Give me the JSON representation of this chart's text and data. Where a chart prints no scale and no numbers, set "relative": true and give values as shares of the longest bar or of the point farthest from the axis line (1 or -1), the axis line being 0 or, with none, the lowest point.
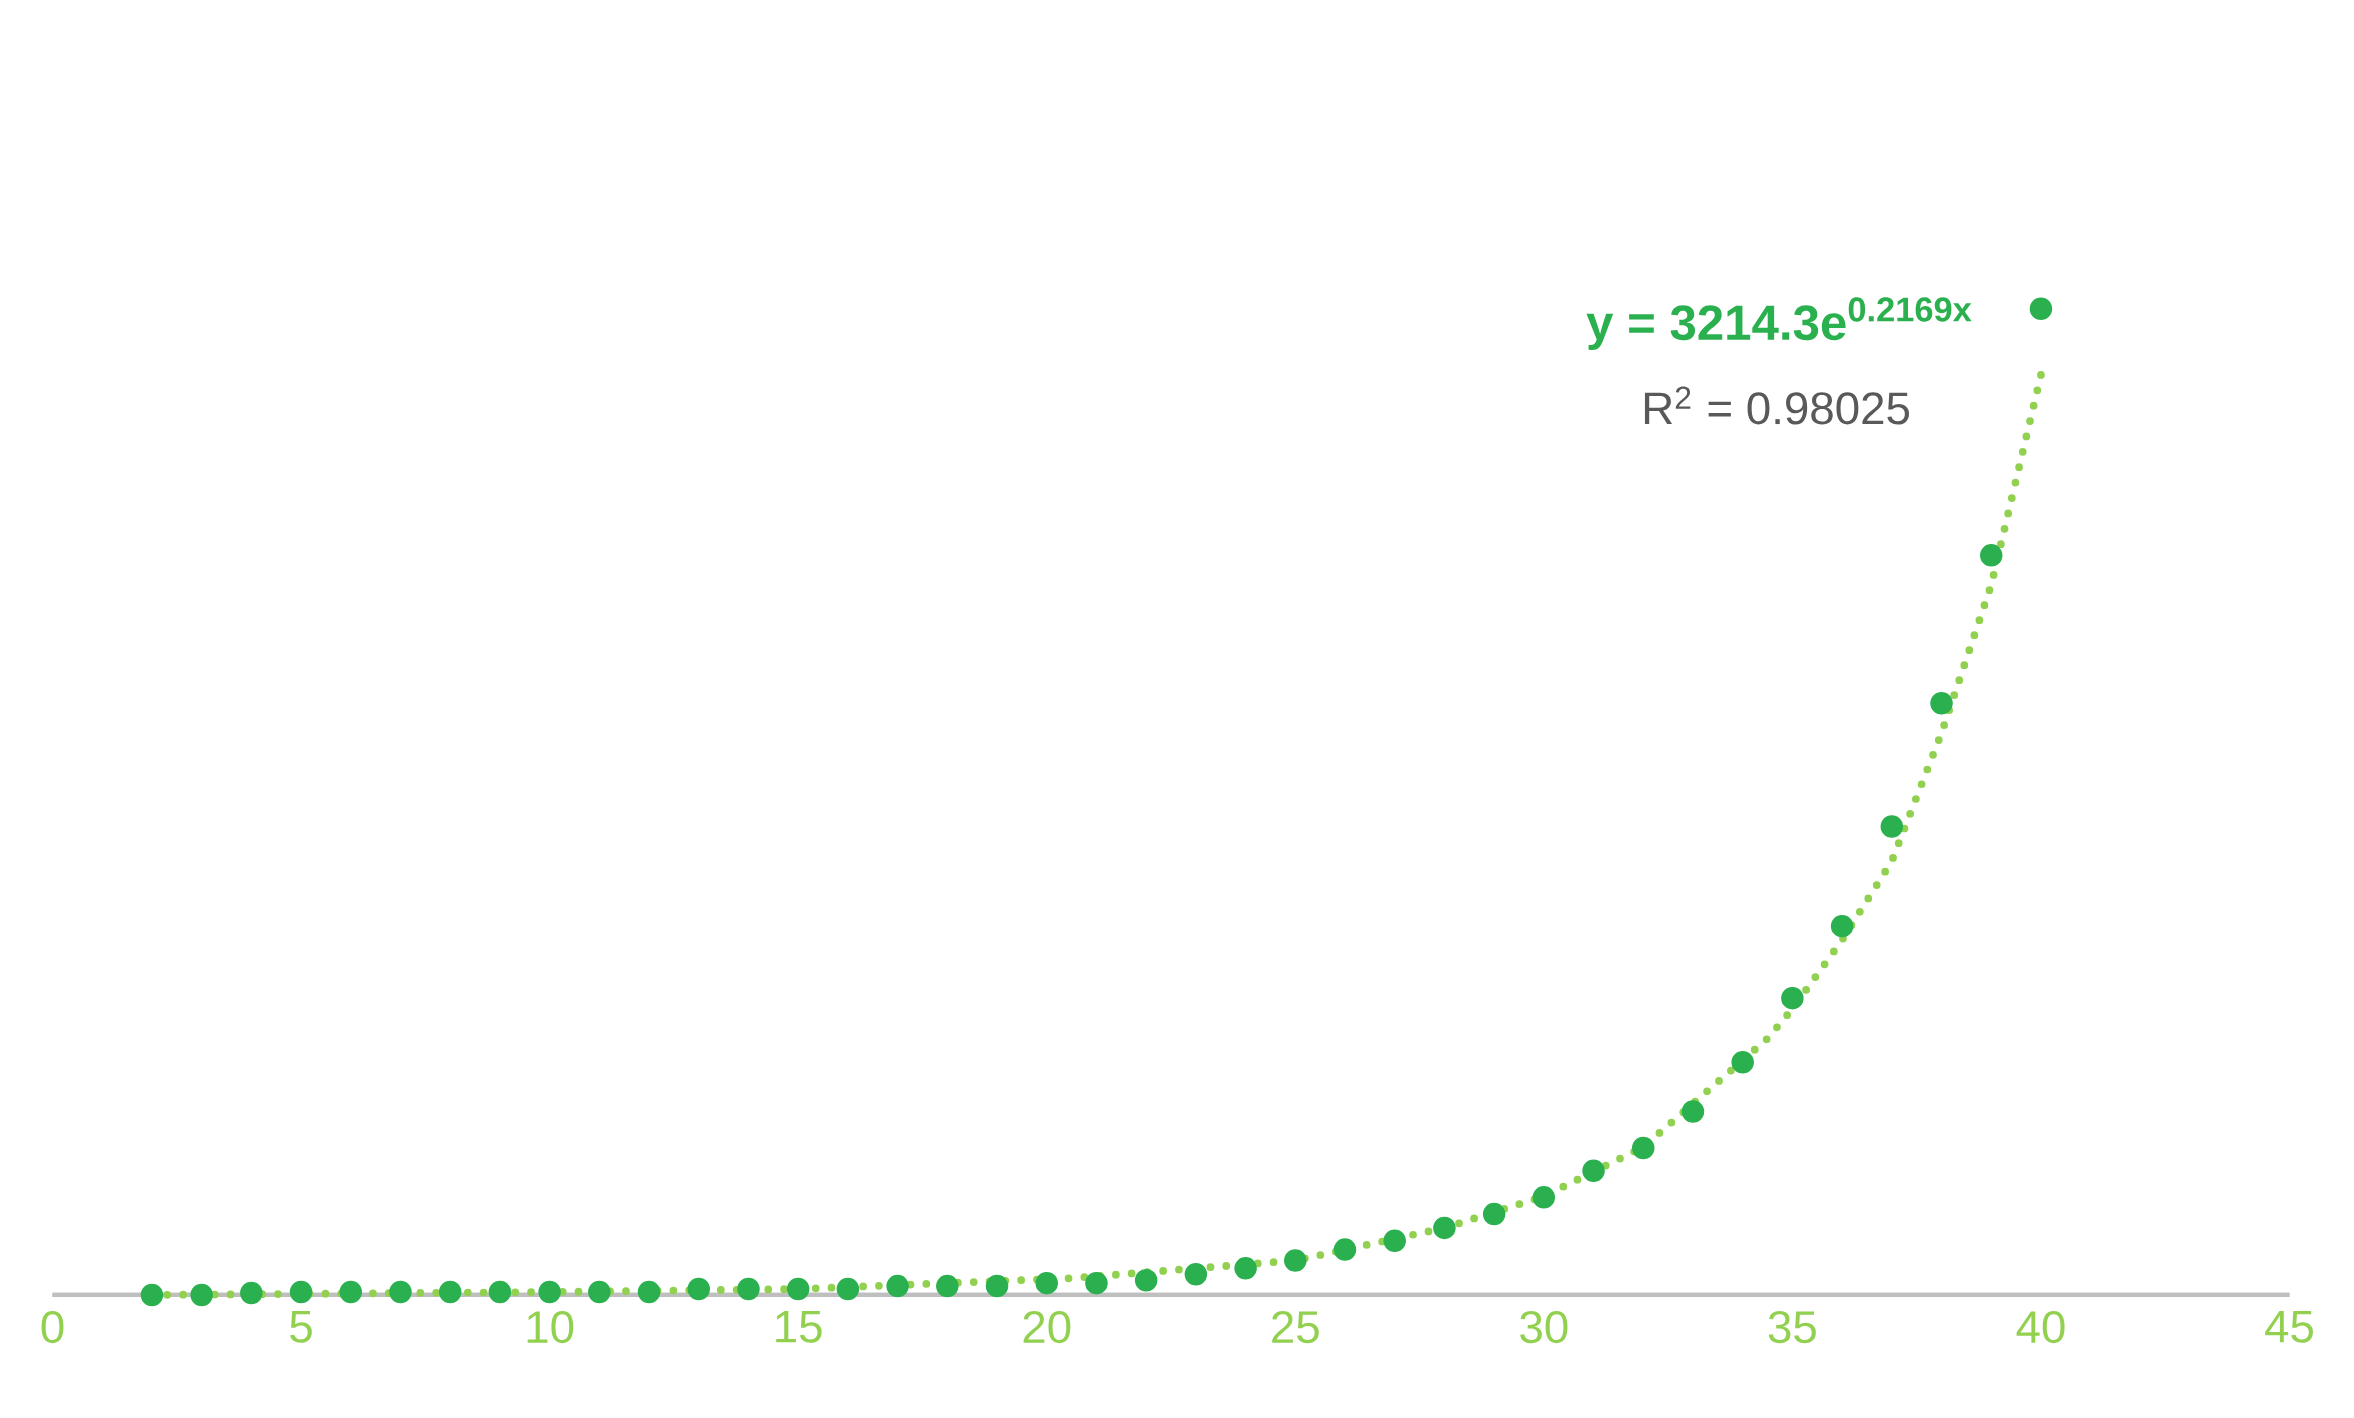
{
  "chart_data": {
    "type": "scatter",
    "relative": true,
    "xlim": [
      0,
      45
    ],
    "xticks": [
      0,
      5,
      10,
      15,
      20,
      25,
      30,
      35,
      40,
      45
    ],
    "annotations": [
      "y = 3214.3e$^{0.2169x}$",
      "R$^{2}$ = 0.98025"
    ],
    "series": [
      {
        "type": "scatter",
        "marker": "circle",
        "color": "#2bb04f",
        "x": [
          2,
          3,
          4,
          5,
          6,
          7,
          8,
          9,
          10,
          11,
          12,
          13,
          14,
          15,
          16,
          17,
          18,
          19,
          20,
          21,
          22,
          23,
          24,
          25,
          26,
          27,
          28,
          29,
          30,
          31,
          32,
          33,
          34,
          35,
          36,
          37,
          38,
          39,
          40
        ],
        "values": [
          0,
          0,
          0.002,
          0.003,
          0.003,
          0.003,
          0.003,
          0.003,
          0.003,
          0.003,
          0.003,
          0.006,
          0.006,
          0.006,
          0.006,
          0.009,
          0.009,
          0.009,
          0.012,
          0.012,
          0.015,
          0.021,
          0.027,
          0.035,
          0.046,
          0.055,
          0.068,
          0.082,
          0.099,
          0.126,
          0.149,
          0.186,
          0.236,
          0.301,
          0.374,
          0.475,
          0.6,
          0.75,
          1
        ]
      },
      {
        "type": "line",
        "marker": "none",
        "line_style": "dotted",
        "color": "#92d050",
        "x": [
          2,
          10,
          15,
          20.5,
          25,
          28,
          30,
          32,
          34.5,
          35,
          36,
          37,
          38,
          39,
          40
        ],
        "values": [
          0,
          0.003,
          0.006,
          0.017,
          0.035,
          0.068,
          0.1,
          0.15,
          0.26,
          0.29,
          0.36,
          0.44,
          0.57,
          0.72,
          0.933
        ]
      }
    ]
  }
}
